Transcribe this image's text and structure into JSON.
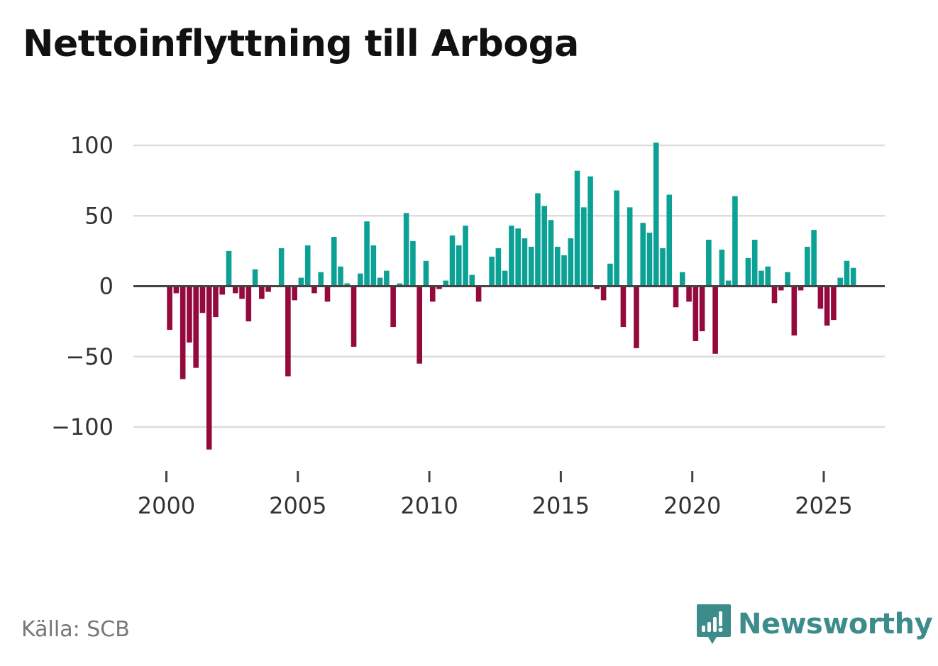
{
  "title": "Nettoinflyttning till Arboga",
  "source": "Källa: SCB",
  "brand": {
    "name": "Newsworthy",
    "logo_icon": "newsworthy-bar-chart-speech-bubble-icon"
  },
  "colors": {
    "positive": "#0ca195",
    "negative": "#940a3c",
    "grid": "#dcdcdc",
    "zero_line": "#444444",
    "brand": "#3c8c8c"
  },
  "chart_data": {
    "type": "bar",
    "title": "Nettoinflyttning till Arboga",
    "xlabel": "",
    "ylabel": "",
    "ylim": [
      -115,
      105
    ],
    "xlim": [
      1999.1,
      2027.3
    ],
    "grid": true,
    "yticks": [
      100,
      50,
      0,
      -50,
      -100
    ],
    "ytick_labels": [
      "100",
      "50",
      "0",
      "−50",
      "−100"
    ],
    "xticks": [
      2000,
      2005,
      2010,
      2015,
      2020,
      2025
    ],
    "xtick_labels": [
      "2000",
      "2005",
      "2010",
      "2015",
      "2020",
      "2025"
    ],
    "x_unit": "quarter",
    "x_start": 2000.125,
    "values": [
      -31,
      -5,
      -66,
      -40,
      -58,
      -19,
      -116,
      -22,
      -6,
      25,
      -5,
      -9,
      -25,
      12,
      -9,
      -4,
      0,
      27,
      -64,
      -10,
      6,
      29,
      -5,
      10,
      -11,
      35,
      14,
      2,
      -43,
      9,
      46,
      29,
      6,
      11,
      -29,
      2,
      52,
      32,
      -55,
      18,
      -11,
      -2,
      4,
      36,
      29,
      43,
      8,
      -11,
      0,
      21,
      27,
      11,
      43,
      41,
      34,
      28,
      66,
      57,
      47,
      28,
      22,
      34,
      82,
      56,
      78,
      -2,
      -10,
      16,
      68,
      -29,
      56,
      -44,
      45,
      38,
      102,
      27,
      65,
      -15,
      10,
      -11,
      -39,
      -32,
      33,
      -48,
      26,
      4,
      64,
      0,
      20,
      33,
      11,
      14,
      -12,
      -3,
      10,
      -35,
      -3,
      28,
      40,
      -16,
      -28,
      -24,
      6,
      18,
      13
    ]
  }
}
